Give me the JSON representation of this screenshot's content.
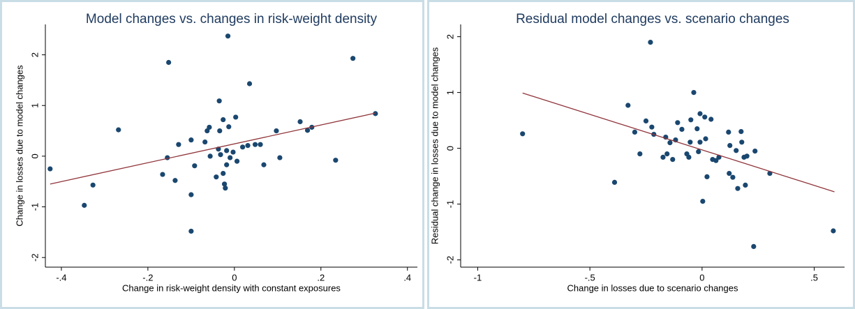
{
  "chart_data": [
    {
      "type": "scatter",
      "title": "Model changes vs. changes in risk-weight density",
      "x_label": "Change in risk-weight density with constant exposures",
      "y_label": "Change in losses due to model changes",
      "xlim": [
        -0.437,
        0.423
      ],
      "ylim": [
        -2.19,
        2.6
      ],
      "xticks": [
        {
          "value": -0.4,
          "label": "-.4"
        },
        {
          "value": -0.2,
          "label": "-.2"
        },
        0,
        {
          "value": 0.2,
          "label": ".2"
        },
        {
          "value": 0.4,
          "label": ".4"
        }
      ],
      "yticks": [
        -2,
        -1,
        0,
        1,
        2
      ],
      "series": [
        {
          "color": "#1a476f",
          "x": [
            -0.426,
            -0.347,
            -0.327,
            -0.268,
            -0.152,
            -0.166,
            -0.155,
            -0.137,
            -0.129,
            -0.1,
            -0.092,
            -0.1,
            -0.1,
            -0.068,
            -0.063,
            -0.058,
            -0.056,
            -0.042,
            -0.035,
            -0.034,
            -0.037,
            -0.032,
            -0.026,
            -0.026,
            -0.023,
            -0.021,
            -0.018,
            -0.018,
            -0.013,
            -0.015,
            -0.01,
            -0.003,
            0.003,
            0.006,
            0.019,
            0.031,
            0.035,
            0.048,
            0.06,
            0.068,
            0.097,
            0.105,
            0.152,
            0.169,
            0.179,
            0.234,
            0.274,
            0.326
          ],
          "y": [
            -0.25,
            -0.97,
            -0.57,
            0.52,
            1.85,
            -0.36,
            -0.03,
            -0.48,
            0.23,
            0.32,
            -0.19,
            -0.76,
            -1.48,
            0.28,
            0.5,
            0.57,
            0,
            -0.41,
            1.09,
            0.5,
            0.14,
            0.03,
            0.72,
            -0.34,
            -0.55,
            -0.63,
            0.11,
            -0.17,
            0.58,
            2.37,
            -0.03,
            0.08,
            0.77,
            -0.1,
            0.18,
            0.21,
            1.43,
            0.23,
            0.23,
            -0.17,
            0.5,
            -0.03,
            0.68,
            0.51,
            0.57,
            -0.08,
            1.93,
            0.84
          ]
        }
      ],
      "fit_line": {
        "color": "#90353b",
        "x": [
          -0.426,
          0.326
        ],
        "y": [
          -0.55,
          0.85
        ]
      }
    },
    {
      "type": "scatter",
      "title": "Residual model changes vs. scenario changes",
      "x_label": "Change in losses due to scenario changes",
      "y_label": "Residual change in losses due to model changes",
      "xlim": [
        -1.076,
        0.635
      ],
      "ylim": [
        -2.13,
        2.22
      ],
      "xticks": [
        -1,
        {
          "value": -0.5,
          "label": "-.5"
        },
        0,
        {
          "value": 0.5,
          "label": ".5"
        }
      ],
      "yticks": [
        -2,
        -1,
        0,
        1,
        2
      ],
      "series": [
        {
          "color": "#1a476f",
          "x": [
            -0.8,
            -0.39,
            -0.33,
            -0.3,
            -0.277,
            -0.25,
            -0.23,
            -0.224,
            -0.215,
            -0.174,
            -0.162,
            -0.156,
            -0.143,
            -0.131,
            -0.118,
            -0.109,
            -0.09,
            -0.068,
            -0.059,
            -0.053,
            -0.05,
            -0.037,
            -0.022,
            -0.016,
            -0.009,
            -0.009,
            0.003,
            0.012,
            0.016,
            0.022,
            0.04,
            0.047,
            0.062,
            0.075,
            0.118,
            0.121,
            0.124,
            0.137,
            0.152,
            0.159,
            0.174,
            0.177,
            0.187,
            0.193,
            0.2,
            0.236,
            0.23,
            0.302,
            0.585
          ],
          "y": [
            0.26,
            -0.61,
            0.77,
            0.29,
            -0.1,
            0.49,
            1.9,
            0.38,
            0.25,
            -0.16,
            0.2,
            -0.1,
            0.1,
            -0.2,
            0.15,
            0.46,
            0.34,
            -0.1,
            -0.16,
            0.11,
            0.51,
            1.0,
            0.35,
            -0.06,
            0.62,
            0.11,
            -0.95,
            0.56,
            0.17,
            -0.51,
            0.52,
            -0.2,
            -0.22,
            -0.16,
            0.29,
            -0.45,
            0.05,
            -0.52,
            -0.04,
            -0.72,
            0.3,
            0.11,
            -0.16,
            -0.66,
            -0.14,
            -0.05,
            -1.76,
            -0.45,
            -1.48
          ]
        }
      ],
      "fit_line": {
        "color": "#90353b",
        "x": [
          -0.8,
          0.59
        ],
        "y": [
          0.99,
          -0.78
        ]
      }
    }
  ]
}
